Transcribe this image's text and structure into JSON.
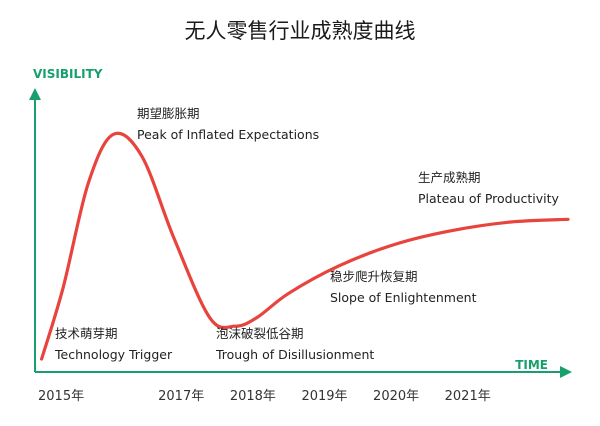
{
  "chart_data": {
    "type": "line",
    "title": "无人零售行业成熟度曲线",
    "ylabel": "VISIBILITY",
    "xlabel": "TIME",
    "x_ticks": [
      "2015年",
      "2017年",
      "2018年",
      "2019年",
      "2020年",
      "2021年"
    ],
    "x_tick_values": [
      2015,
      2017,
      2018,
      2019,
      2020,
      2021
    ],
    "xlim": [
      2015,
      2022.4
    ],
    "ylim": [
      0,
      100
    ],
    "grid": false,
    "legend": "none",
    "line_color": "#e8433d",
    "axis_color": "#17a06e",
    "series": [
      {
        "x": [
          2015.05,
          2015.35,
          2015.7,
          2016.05,
          2016.45,
          2016.9,
          2017.4,
          2017.75,
          2018.05,
          2018.5,
          2019.2,
          2020.0,
          2020.8,
          2021.6,
          2022.4
        ],
        "values": [
          4,
          30,
          68,
          86,
          78,
          48,
          19,
          16,
          19,
          28,
          38,
          46,
          51,
          54,
          55
        ]
      }
    ],
    "annotations": [
      {
        "cn": "技术萌芽期",
        "en": "Technology Trigger"
      },
      {
        "cn": "期望膨胀期",
        "en": "Peak of Inflated Expectations"
      },
      {
        "cn": "泡沫破裂低谷期",
        "en": "Trough of Disillusionment"
      },
      {
        "cn": "稳步爬升恢复期",
        "en": "Slope of Enlightenment"
      },
      {
        "cn": "生产成熟期",
        "en": "Plateau of Productivity"
      }
    ]
  }
}
